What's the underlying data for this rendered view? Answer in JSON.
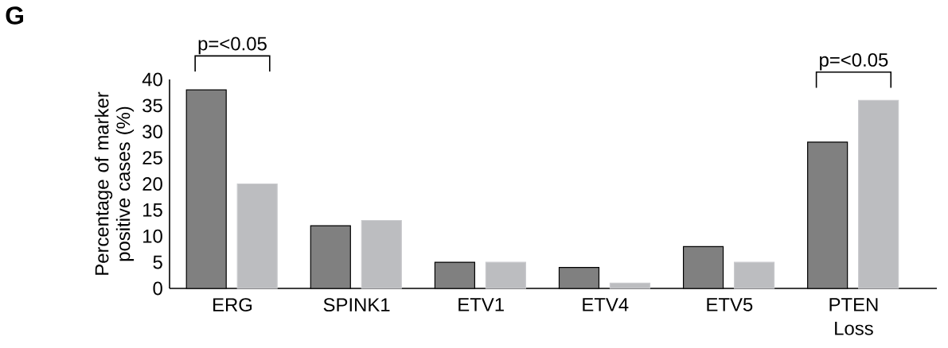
{
  "chart_data": {
    "type": "bar",
    "ylabel": "Percentage of marker positive cases (%)",
    "categories": [
      "ERG",
      "SPINK1",
      "ETV1",
      "ETV4",
      "ETV5",
      "PTEN Loss"
    ],
    "series": [
      {
        "color": "#808080",
        "values": [
          38,
          12,
          5,
          4,
          8,
          28
        ]
      },
      {
        "color": "#bcbdc0",
        "values": [
          20,
          13,
          5,
          1,
          5,
          36
        ]
      }
    ],
    "ylim": [
      0,
      40
    ],
    "yticks": [
      0,
      5,
      10,
      15,
      20,
      25,
      30,
      35,
      40
    ],
    "grid": false,
    "annotations": [
      "G",
      "p=<0.05",
      "p=<0.05"
    ]
  }
}
